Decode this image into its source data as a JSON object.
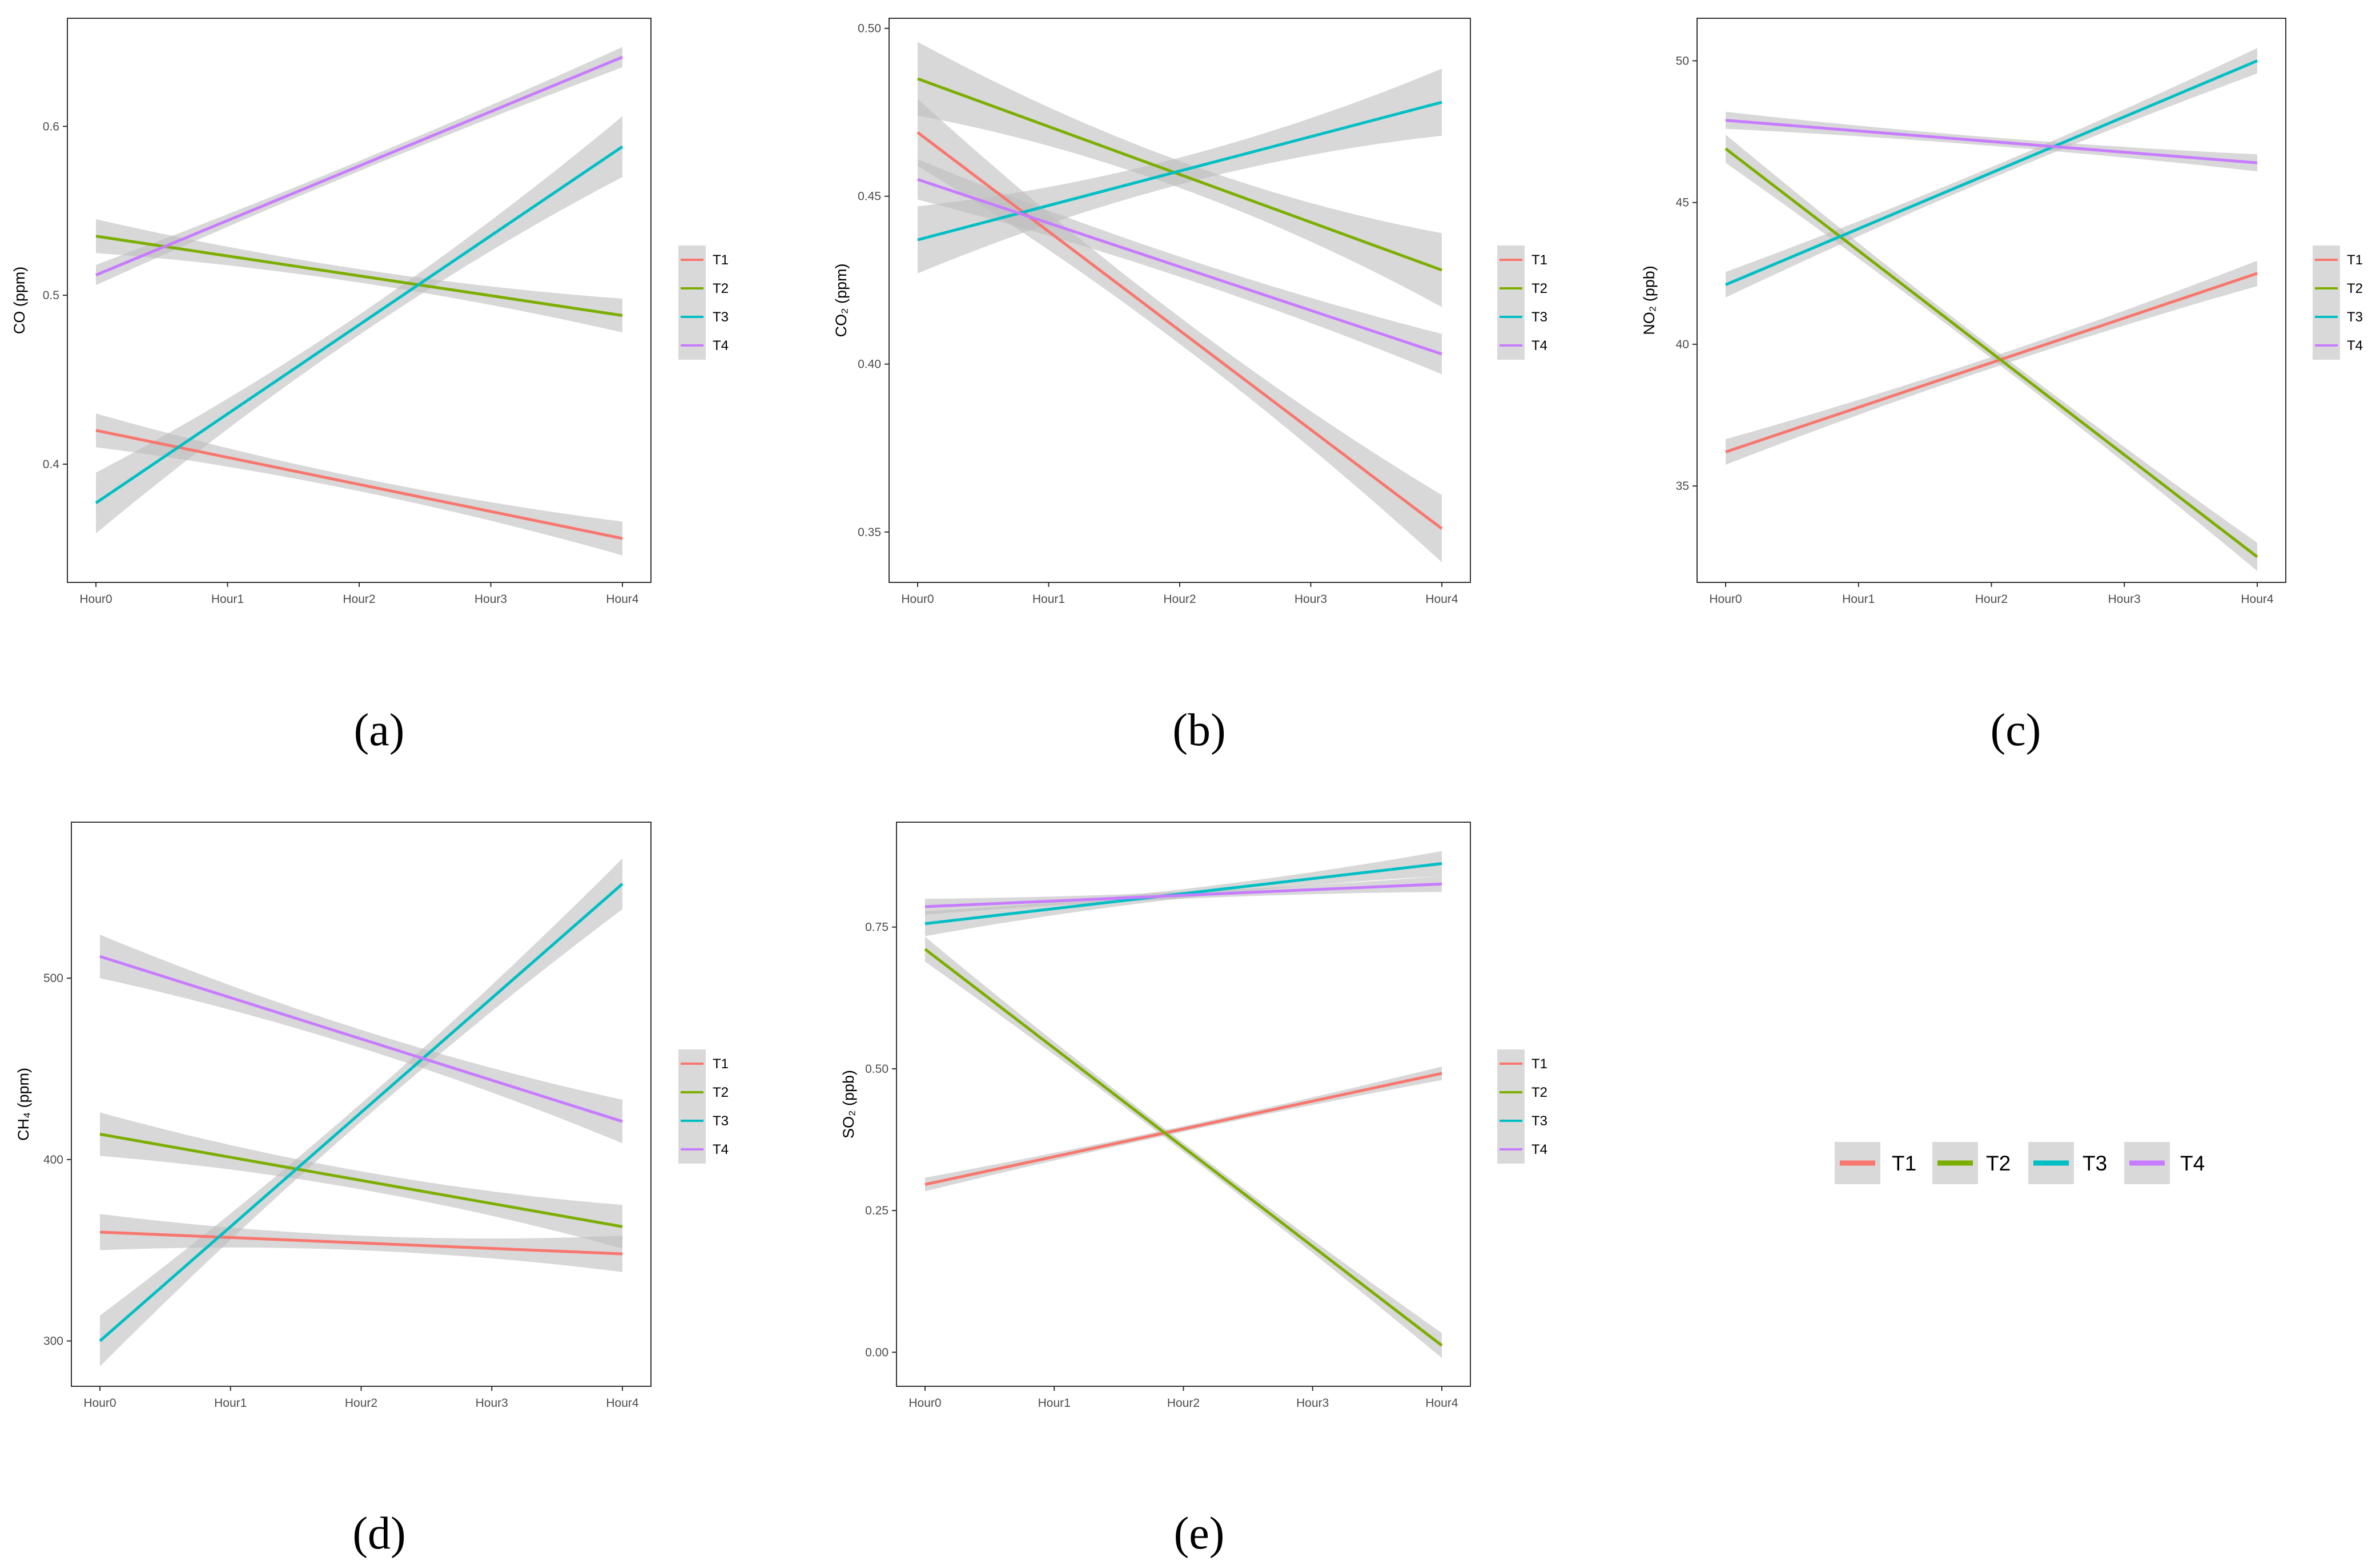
{
  "figure": {
    "panel_captions": [
      "(a)",
      "(b)",
      "(c)",
      "(d)",
      "(e)"
    ],
    "colors": {
      "T1": "#F8766D",
      "T2": "#7CAE00",
      "T3": "#00BFC4",
      "T4": "#C77CFF",
      "band": "#bebebe",
      "legend_key_bg": "#d9d9d9"
    },
    "shared_legend": {
      "labels": [
        "T1",
        "T2",
        "T3",
        "T4"
      ]
    }
  },
  "chart_data": [
    {
      "type": "line",
      "panel": "(a)",
      "ylabel": "CO (ppm)",
      "categories": [
        "Hour0",
        "Hour1",
        "Hour2",
        "Hour3",
        "Hour4"
      ],
      "ylim": [
        0.33,
        0.664
      ],
      "yticks": [
        0.4,
        0.5,
        0.6
      ],
      "ytick_labels": [
        "0.4",
        "0.5",
        "0.6"
      ],
      "legend": [
        "T1",
        "T2",
        "T3",
        "T4"
      ],
      "series": [
        {
          "name": "T1",
          "start": 0.42,
          "end": 0.356,
          "ci_start": 0.01,
          "ci_mid": 0.004,
          "ci_end": 0.01
        },
        {
          "name": "T2",
          "start": 0.535,
          "end": 0.488,
          "ci_start": 0.01,
          "ci_mid": 0.004,
          "ci_end": 0.01
        },
        {
          "name": "T3",
          "start": 0.377,
          "end": 0.588,
          "ci_start": 0.018,
          "ci_mid": 0.006,
          "ci_end": 0.018
        },
        {
          "name": "T4",
          "start": 0.512,
          "end": 0.641,
          "ci_start": 0.006,
          "ci_mid": 0.003,
          "ci_end": 0.006
        }
      ]
    },
    {
      "type": "line",
      "panel": "(b)",
      "ylabel": "CO₂ (ppm)",
      "categories": [
        "Hour0",
        "Hour1",
        "Hour2",
        "Hour3",
        "Hour4"
      ],
      "ylim": [
        0.335,
        0.503
      ],
      "yticks": [
        0.35,
        0.4,
        0.45,
        0.5
      ],
      "ytick_labels": [
        "0.35",
        "0.40",
        "0.45",
        "0.50"
      ],
      "legend": [
        "T1",
        "T2",
        "T3",
        "T4"
      ],
      "series": [
        {
          "name": "T1",
          "start": 0.469,
          "end": 0.351,
          "ci_start": 0.01,
          "ci_mid": 0.004,
          "ci_end": 0.01
        },
        {
          "name": "T2",
          "start": 0.485,
          "end": 0.428,
          "ci_start": 0.011,
          "ci_mid": 0.004,
          "ci_end": 0.011
        },
        {
          "name": "T3",
          "start": 0.437,
          "end": 0.478,
          "ci_start": 0.01,
          "ci_mid": 0.004,
          "ci_end": 0.01
        },
        {
          "name": "T4",
          "start": 0.455,
          "end": 0.403,
          "ci_start": 0.006,
          "ci_mid": 0.003,
          "ci_end": 0.006
        }
      ]
    },
    {
      "type": "line",
      "panel": "(c)",
      "ylabel": "NO₂ (ppb)",
      "categories": [
        "Hour0",
        "Hour1",
        "Hour2",
        "Hour3",
        "Hour4"
      ],
      "ylim": [
        31.6,
        51.5
      ],
      "yticks": [
        35,
        40,
        45,
        50
      ],
      "ytick_labels": [
        "35",
        "40",
        "45",
        "50"
      ],
      "legend": [
        "T1",
        "T2",
        "T3",
        "T4"
      ],
      "series": [
        {
          "name": "T1",
          "start": 36.2,
          "end": 42.5,
          "ci_start": 0.45,
          "ci_mid": 0.2,
          "ci_end": 0.45
        },
        {
          "name": "T2",
          "start": 46.9,
          "end": 32.5,
          "ci_start": 0.5,
          "ci_mid": 0.2,
          "ci_end": 0.5
        },
        {
          "name": "T3",
          "start": 42.1,
          "end": 50.0,
          "ci_start": 0.45,
          "ci_mid": 0.2,
          "ci_end": 0.45
        },
        {
          "name": "T4",
          "start": 47.9,
          "end": 46.4,
          "ci_start": 0.3,
          "ci_mid": 0.15,
          "ci_end": 0.3
        }
      ]
    },
    {
      "type": "line",
      "panel": "(d)",
      "ylabel": "CH₄ (ppm)",
      "categories": [
        "Hour0",
        "Hour1",
        "Hour2",
        "Hour3",
        "Hour4"
      ],
      "ylim": [
        275,
        586
      ],
      "yticks": [
        300,
        400,
        500
      ],
      "ytick_labels": [
        "300",
        "400",
        "500"
      ],
      "legend": [
        "T1",
        "T2",
        "T3",
        "T4"
      ],
      "series": [
        {
          "name": "T1",
          "start": 360,
          "end": 348,
          "ci_start": 10,
          "ci_mid": 4,
          "ci_end": 10
        },
        {
          "name": "T2",
          "start": 414,
          "end": 363,
          "ci_start": 12,
          "ci_mid": 5,
          "ci_end": 12
        },
        {
          "name": "T3",
          "start": 300,
          "end": 552,
          "ci_start": 14,
          "ci_mid": 5,
          "ci_end": 14
        },
        {
          "name": "T4",
          "start": 512,
          "end": 421,
          "ci_start": 12,
          "ci_mid": 5,
          "ci_end": 12
        }
      ]
    },
    {
      "type": "line",
      "panel": "(e)",
      "ylabel": "SO₂ (ppb)",
      "categories": [
        "Hour0",
        "Hour1",
        "Hour2",
        "Hour3",
        "Hour4"
      ],
      "ylim": [
        -0.06,
        0.935
      ],
      "yticks": [
        0.0,
        0.25,
        0.5,
        0.75
      ],
      "ytick_labels": [
        "0.00",
        "0.25",
        "0.50",
        "0.75"
      ],
      "legend": [
        "T1",
        "T2",
        "T3",
        "T4"
      ],
      "series": [
        {
          "name": "T1",
          "start": 0.296,
          "end": 0.492,
          "ci_start": 0.012,
          "ci_mid": 0.005,
          "ci_end": 0.012
        },
        {
          "name": "T2",
          "start": 0.711,
          "end": 0.012,
          "ci_start": 0.022,
          "ci_mid": 0.008,
          "ci_end": 0.022
        },
        {
          "name": "T3",
          "start": 0.756,
          "end": 0.862,
          "ci_start": 0.022,
          "ci_mid": 0.008,
          "ci_end": 0.022
        },
        {
          "name": "T4",
          "start": 0.786,
          "end": 0.826,
          "ci_start": 0.014,
          "ci_mid": 0.006,
          "ci_end": 0.014
        }
      ]
    }
  ]
}
